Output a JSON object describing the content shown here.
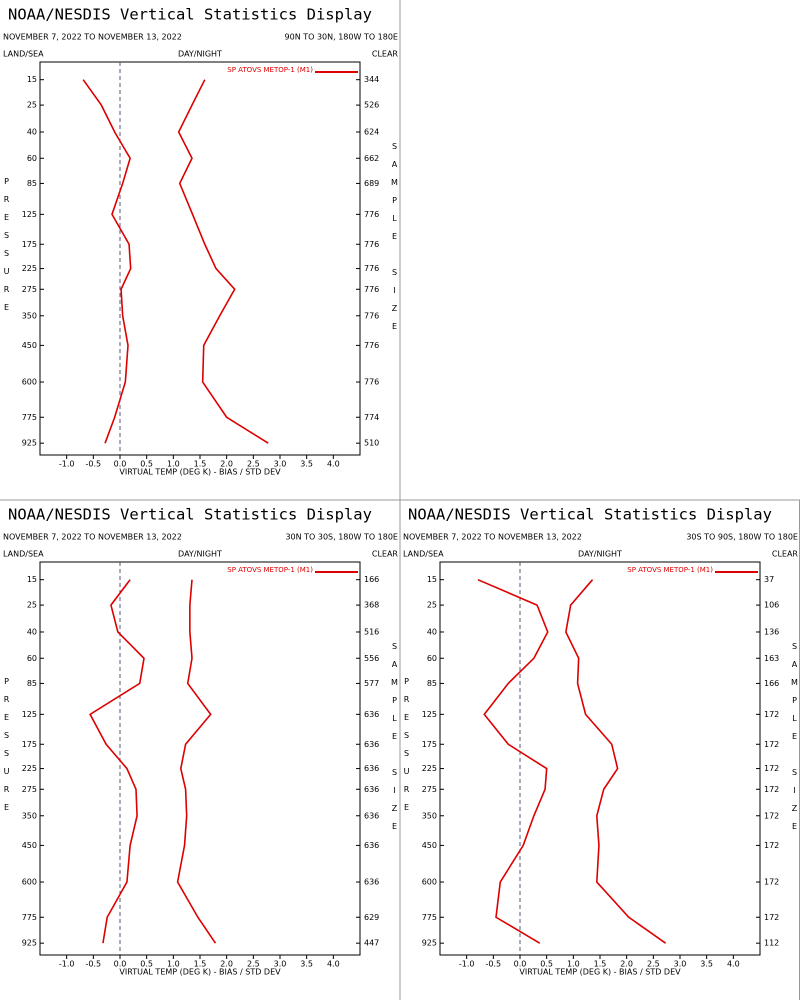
{
  "chart_data": [
    {
      "type": "line",
      "title": "NOAA/NESDIS Vertical Statistics Display",
      "date_range": "NOVEMBER 7, 2022 TO NOVEMBER 13, 2022",
      "region": "90N TO 30N, 180W TO 180E",
      "surface": "LAND/SEA",
      "time_of_day": "DAY/NIGHT",
      "sky": "CLEAR",
      "xlabel": "VIRTUAL TEMP (DEG K) - BIAS / STD DEV",
      "ylabel": "PRESSURE",
      "y2label": "SAMPLE SIZE",
      "levels": [
        15,
        25,
        40,
        60,
        85,
        125,
        175,
        225,
        275,
        350,
        450,
        600,
        775,
        925
      ],
      "ylim": [
        10,
        1000
      ],
      "yscale_exponent": 0.286,
      "xlim": [
        -1.5,
        4.5
      ],
      "xticks": [
        {
          "value": -1,
          "label": "-1.0"
        },
        {
          "value": -0.5,
          "label": "-0.5"
        },
        {
          "value": 0,
          "label": "0.0"
        },
        {
          "value": 0.5,
          "label": "0.5"
        },
        {
          "value": 1,
          "label": "1.0"
        },
        {
          "value": 1.5,
          "label": "1.5"
        },
        {
          "value": 2,
          "label": "2.0"
        },
        {
          "value": 2.5,
          "label": "2.5"
        },
        {
          "value": 3,
          "label": "3.0"
        },
        {
          "value": 3.5,
          "label": "3.5"
        },
        {
          "value": 4,
          "label": "4.0"
        }
      ],
      "sample_size": [
        344,
        526,
        624,
        662,
        689,
        776,
        776,
        776,
        776,
        776,
        776,
        776,
        774,
        510
      ],
      "series": [
        {
          "name": "SP ATOVS METOP-1 (M1)",
          "color": "#dd0000",
          "bias": [
            -0.69,
            -0.35,
            -0.1,
            0.19,
            0.05,
            -0.15,
            0.17,
            0.2,
            0.02,
            0.05,
            0.15,
            0.1,
            -0.1,
            -0.28
          ],
          "std_dev": [
            1.59,
            1.35,
            1.1,
            1.35,
            1.12,
            1.36,
            1.59,
            1.8,
            2.15,
            1.87,
            1.57,
            1.55,
            2.0,
            2.78
          ]
        }
      ]
    },
    {
      "type": "line",
      "title": "NOAA/NESDIS Vertical Statistics Display",
      "date_range": "NOVEMBER 7, 2022 TO NOVEMBER 13, 2022",
      "region": "30N TO 30S, 180W TO 180E",
      "surface": "LAND/SEA",
      "time_of_day": "DAY/NIGHT",
      "sky": "CLEAR",
      "xlabel": "VIRTUAL TEMP (DEG K) - BIAS / STD DEV",
      "ylabel": "PRESSURE",
      "y2label": "SAMPLE SIZE",
      "levels": [
        15,
        25,
        40,
        60,
        85,
        125,
        175,
        225,
        275,
        350,
        450,
        600,
        775,
        925
      ],
      "ylim": [
        10,
        1000
      ],
      "yscale_exponent": 0.286,
      "xlim": [
        -1.5,
        4.5
      ],
      "xticks": [
        {
          "value": -1,
          "label": "-1.0"
        },
        {
          "value": -0.5,
          "label": "-0.5"
        },
        {
          "value": 0,
          "label": "0.0"
        },
        {
          "value": 0.5,
          "label": "0.5"
        },
        {
          "value": 1,
          "label": "1.0"
        },
        {
          "value": 1.5,
          "label": "1.5"
        },
        {
          "value": 2,
          "label": "2.0"
        },
        {
          "value": 2.5,
          "label": "2.5"
        },
        {
          "value": 3,
          "label": "3.0"
        },
        {
          "value": 3.5,
          "label": "3.5"
        },
        {
          "value": 4,
          "label": "4.0"
        }
      ],
      "sample_size": [
        166,
        368,
        516,
        556,
        577,
        636,
        636,
        636,
        636,
        636,
        636,
        636,
        629,
        447
      ],
      "series": [
        {
          "name": "SP ATOVS METOP-1 (M1)",
          "color": "#dd0000",
          "bias": [
            0.19,
            -0.17,
            -0.04,
            0.45,
            0.37,
            -0.56,
            -0.26,
            0.13,
            0.3,
            0.32,
            0.19,
            0.13,
            -0.24,
            -0.32
          ],
          "std_dev": [
            1.35,
            1.31,
            1.31,
            1.35,
            1.27,
            1.7,
            1.23,
            1.14,
            1.23,
            1.25,
            1.21,
            1.08,
            1.46,
            1.79
          ]
        }
      ]
    },
    {
      "type": "line",
      "title": "NOAA/NESDIS Vertical Statistics Display",
      "date_range": "NOVEMBER 7, 2022 TO NOVEMBER 13, 2022",
      "region": "30S TO 90S, 180W TO 180E",
      "surface": "LAND/SEA",
      "time_of_day": "DAY/NIGHT",
      "sky": "CLEAR",
      "xlabel": "VIRTUAL TEMP (DEG K) - BIAS / STD DEV",
      "ylabel": "PRESSURE",
      "y2label": "SAMPLE SIZE",
      "levels": [
        15,
        25,
        40,
        60,
        85,
        125,
        175,
        225,
        275,
        350,
        450,
        600,
        775,
        925
      ],
      "ylim": [
        10,
        1000
      ],
      "yscale_exponent": 0.286,
      "xlim": [
        -1.5,
        4.5
      ],
      "xticks": [
        {
          "value": -1,
          "label": "-1.0"
        },
        {
          "value": -0.5,
          "label": "-0.5"
        },
        {
          "value": 0,
          "label": "0.0"
        },
        {
          "value": 0.5,
          "label": "0.5"
        },
        {
          "value": 1,
          "label": "1.0"
        },
        {
          "value": 1.5,
          "label": "1.5"
        },
        {
          "value": 2,
          "label": "2.0"
        },
        {
          "value": 2.5,
          "label": "2.5"
        },
        {
          "value": 3,
          "label": "3.0"
        },
        {
          "value": 3.5,
          "label": "3.5"
        },
        {
          "value": 4,
          "label": "4.0"
        }
      ],
      "sample_size": [
        37,
        106,
        136,
        163,
        166,
        172,
        172,
        172,
        172,
        172,
        172,
        172,
        172,
        112
      ],
      "series": [
        {
          "name": "SP ATOVS METOP-1 (M1)",
          "color": "#dd0000",
          "bias": [
            -0.79,
            0.32,
            0.52,
            0.26,
            -0.22,
            -0.67,
            -0.22,
            0.5,
            0.47,
            0.26,
            0.06,
            -0.37,
            -0.45,
            0.37
          ],
          "std_dev": [
            1.36,
            0.95,
            0.86,
            1.1,
            1.08,
            1.23,
            1.72,
            1.83,
            1.57,
            1.44,
            1.48,
            1.44,
            2.04,
            2.73
          ]
        }
      ]
    }
  ]
}
